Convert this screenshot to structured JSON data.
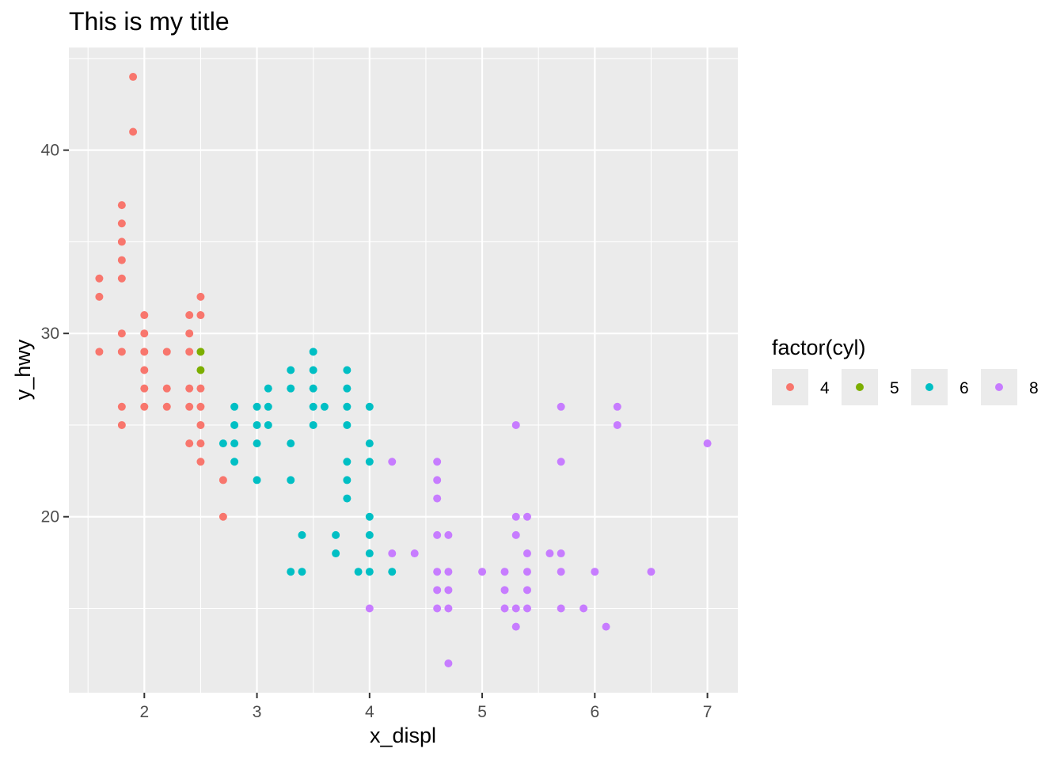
{
  "chart_data": {
    "type": "scatter",
    "title": "This is my title",
    "xlabel": "x_displ",
    "ylabel": "y_hwy",
    "xlim": [
      1.33,
      7.27
    ],
    "ylim": [
      10.4,
      45.6
    ],
    "x_ticks": [
      2,
      3,
      4,
      5,
      6,
      7
    ],
    "y_ticks": [
      20,
      30,
      40
    ],
    "grid": true,
    "legend": {
      "title": "factor(cyl)",
      "placement": "right",
      "entries": [
        {
          "label": "4",
          "color": "#F8766D"
        },
        {
          "label": "5",
          "color": "#7CAE00"
        },
        {
          "label": "6",
          "color": "#00BFC4"
        },
        {
          "label": "8",
          "color": "#C77CFF"
        }
      ]
    },
    "series": [
      {
        "cyl": "4",
        "color": "#F8766D",
        "points": [
          [
            1.6,
            33
          ],
          [
            1.6,
            32
          ],
          [
            1.6,
            29
          ],
          [
            1.8,
            37
          ],
          [
            1.8,
            36
          ],
          [
            1.8,
            35
          ],
          [
            1.8,
            34
          ],
          [
            1.8,
            33
          ],
          [
            1.8,
            30
          ],
          [
            1.8,
            29
          ],
          [
            1.8,
            26
          ],
          [
            1.8,
            25
          ],
          [
            1.9,
            44
          ],
          [
            1.9,
            41
          ],
          [
            2.0,
            31
          ],
          [
            2.0,
            30
          ],
          [
            2.0,
            29
          ],
          [
            2.0,
            28
          ],
          [
            2.0,
            27
          ],
          [
            2.0,
            26
          ],
          [
            2.2,
            29
          ],
          [
            2.2,
            27
          ],
          [
            2.2,
            26
          ],
          [
            2.4,
            31
          ],
          [
            2.4,
            30
          ],
          [
            2.4,
            29
          ],
          [
            2.4,
            27
          ],
          [
            2.4,
            26
          ],
          [
            2.4,
            24
          ],
          [
            2.5,
            32
          ],
          [
            2.5,
            31
          ],
          [
            2.5,
            27
          ],
          [
            2.5,
            26
          ],
          [
            2.5,
            25
          ],
          [
            2.5,
            24
          ],
          [
            2.5,
            23
          ],
          [
            2.7,
            22
          ],
          [
            2.7,
            20
          ]
        ]
      },
      {
        "cyl": "5",
        "color": "#7CAE00",
        "points": [
          [
            2.5,
            29
          ],
          [
            2.5,
            28
          ]
        ]
      },
      {
        "cyl": "6",
        "color": "#00BFC4",
        "points": [
          [
            2.7,
            24
          ],
          [
            2.8,
            26
          ],
          [
            2.8,
            25
          ],
          [
            2.8,
            24
          ],
          [
            2.8,
            23
          ],
          [
            3.0,
            26
          ],
          [
            3.0,
            25
          ],
          [
            3.0,
            24
          ],
          [
            3.0,
            22
          ],
          [
            3.1,
            27
          ],
          [
            3.1,
            26
          ],
          [
            3.1,
            25
          ],
          [
            3.3,
            28
          ],
          [
            3.3,
            27
          ],
          [
            3.3,
            24
          ],
          [
            3.3,
            22
          ],
          [
            3.3,
            17
          ],
          [
            3.4,
            19
          ],
          [
            3.4,
            17
          ],
          [
            3.5,
            29
          ],
          [
            3.5,
            28
          ],
          [
            3.5,
            27
          ],
          [
            3.5,
            26
          ],
          [
            3.5,
            25
          ],
          [
            3.6,
            26
          ],
          [
            3.7,
            19
          ],
          [
            3.7,
            18
          ],
          [
            3.8,
            28
          ],
          [
            3.8,
            27
          ],
          [
            3.8,
            26
          ],
          [
            3.8,
            25
          ],
          [
            3.8,
            23
          ],
          [
            3.8,
            22
          ],
          [
            3.8,
            21
          ],
          [
            3.9,
            17
          ],
          [
            4.0,
            26
          ],
          [
            4.0,
            24
          ],
          [
            4.0,
            23
          ],
          [
            4.0,
            20
          ],
          [
            4.0,
            19
          ],
          [
            4.0,
            18
          ],
          [
            4.0,
            17
          ],
          [
            4.2,
            17
          ]
        ]
      },
      {
        "cyl": "8",
        "color": "#C77CFF",
        "points": [
          [
            4.0,
            15
          ],
          [
            4.2,
            23
          ],
          [
            4.2,
            18
          ],
          [
            4.4,
            18
          ],
          [
            4.6,
            23
          ],
          [
            4.6,
            22
          ],
          [
            4.6,
            21
          ],
          [
            4.6,
            19
          ],
          [
            4.6,
            17
          ],
          [
            4.6,
            16
          ],
          [
            4.6,
            15
          ],
          [
            4.7,
            19
          ],
          [
            4.7,
            17
          ],
          [
            4.7,
            16
          ],
          [
            4.7,
            15
          ],
          [
            4.7,
            12
          ],
          [
            5.0,
            17
          ],
          [
            5.2,
            17
          ],
          [
            5.2,
            16
          ],
          [
            5.2,
            15
          ],
          [
            5.3,
            25
          ],
          [
            5.3,
            20
          ],
          [
            5.3,
            19
          ],
          [
            5.3,
            15
          ],
          [
            5.3,
            14
          ],
          [
            5.4,
            20
          ],
          [
            5.4,
            18
          ],
          [
            5.4,
            17
          ],
          [
            5.4,
            16
          ],
          [
            5.4,
            15
          ],
          [
            5.6,
            18
          ],
          [
            5.7,
            26
          ],
          [
            5.7,
            23
          ],
          [
            5.7,
            18
          ],
          [
            5.7,
            17
          ],
          [
            5.7,
            15
          ],
          [
            5.9,
            15
          ],
          [
            6.0,
            17
          ],
          [
            6.1,
            14
          ],
          [
            6.2,
            26
          ],
          [
            6.2,
            25
          ],
          [
            6.5,
            17
          ],
          [
            7.0,
            24
          ]
        ]
      }
    ]
  }
}
